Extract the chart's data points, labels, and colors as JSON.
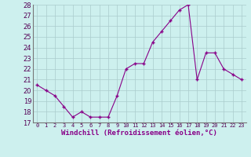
{
  "x": [
    0,
    1,
    2,
    3,
    4,
    5,
    6,
    7,
    8,
    9,
    10,
    11,
    12,
    13,
    14,
    15,
    16,
    17,
    18,
    19,
    20,
    21,
    22,
    23
  ],
  "y": [
    20.5,
    20.0,
    19.5,
    18.5,
    17.5,
    18.0,
    17.5,
    17.5,
    17.5,
    19.5,
    22.0,
    22.5,
    22.5,
    24.5,
    25.5,
    26.5,
    27.5,
    28.0,
    21.0,
    23.5,
    23.5,
    22.0,
    21.5,
    21.0
  ],
  "xlim": [
    -0.5,
    23.5
  ],
  "ylim": [
    17,
    28
  ],
  "yticks": [
    17,
    18,
    19,
    20,
    21,
    22,
    23,
    24,
    25,
    26,
    27,
    28
  ],
  "xticks": [
    0,
    1,
    2,
    3,
    4,
    5,
    6,
    7,
    8,
    9,
    10,
    11,
    12,
    13,
    14,
    15,
    16,
    17,
    18,
    19,
    20,
    21,
    22,
    23
  ],
  "xlabel": "Windchill (Refroidissement éolien,°C)",
  "line_color": "#880088",
  "marker": "+",
  "marker_size": 4,
  "bg_color": "#cdf0ee",
  "grid_color": "#aacccc",
  "title": ""
}
